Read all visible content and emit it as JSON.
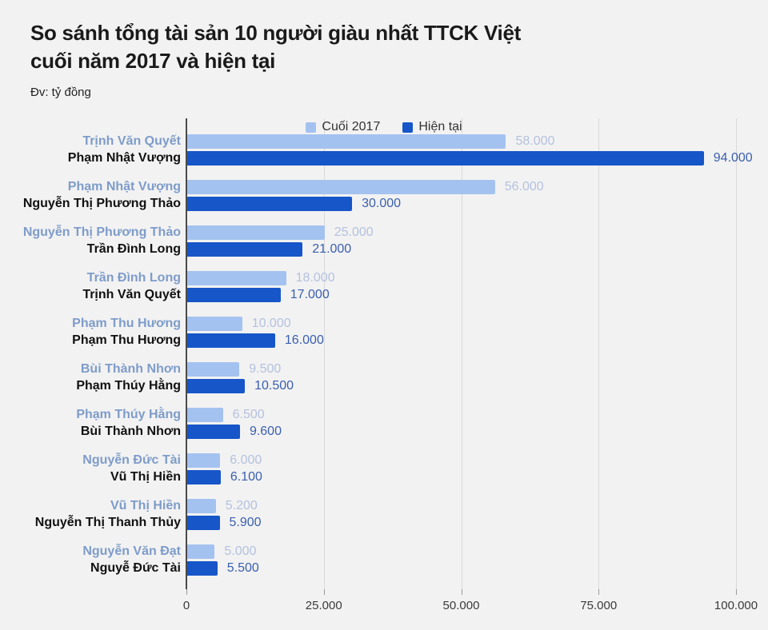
{
  "page": {
    "background": "#f2f2f2"
  },
  "header": {
    "title_line1": "So sánh tổng tài sản 10 người giàu nhất TTCK Việt",
    "title_line2": "cuối năm 2017 và hiện tại",
    "unit_note": "Đv: tỷ đồng"
  },
  "chart_data": {
    "type": "bar",
    "orientation": "horizontal",
    "title": "So sánh tổng tài sản 10 người giàu nhất TTCK Việt cuối năm 2017 và hiện tại",
    "unit": "tỷ đồng",
    "grid": true,
    "legend_position": "top-center",
    "xlim": [
      0,
      100000
    ],
    "x_ticks": [
      {
        "label": "0",
        "value": 0
      },
      {
        "label": "25.000",
        "value": 25000
      },
      {
        "label": "50.000",
        "value": 50000
      },
      {
        "label": "75.000",
        "value": 75000
      },
      {
        "label": "100.000",
        "value": 100000
      }
    ],
    "series": [
      {
        "name": "Cuối 2017",
        "color": "#a4c2f0",
        "name_label_color": "#7e9cc9",
        "value_label_color": "#b4c1de"
      },
      {
        "name": "Hiện tại",
        "color": "#1656c8",
        "name_label_color": "#111111",
        "value_label_color": "#3a5fae"
      }
    ],
    "groups": [
      [
        {
          "name": "Trịnh Văn Quyết",
          "value": 58000,
          "value_label": "58.000"
        },
        {
          "name": "Phạm Nhật Vượng",
          "value": 94000,
          "value_label": "94.000"
        }
      ],
      [
        {
          "name": "Phạm Nhật Vượng",
          "value": 56000,
          "value_label": "56.000"
        },
        {
          "name": "Nguyễn Thị Phương Thảo",
          "value": 30000,
          "value_label": "30.000"
        }
      ],
      [
        {
          "name": "Nguyễn Thị Phương Thảo",
          "value": 25000,
          "value_label": "25.000"
        },
        {
          "name": "Trần Đình Long",
          "value": 21000,
          "value_label": "21.000"
        }
      ],
      [
        {
          "name": "Trần Đình Long",
          "value": 18000,
          "value_label": "18.000"
        },
        {
          "name": "Trịnh Văn Quyết",
          "value": 17000,
          "value_label": "17.000"
        }
      ],
      [
        {
          "name": "Phạm Thu Hương",
          "value": 10000,
          "value_label": "10.000"
        },
        {
          "name": "Phạm Thu Hương",
          "value": 16000,
          "value_label": "16.000"
        }
      ],
      [
        {
          "name": "Bùi Thành Nhơn",
          "value": 9500,
          "value_label": "9.500"
        },
        {
          "name": "Phạm Thúy Hằng",
          "value": 10500,
          "value_label": "10.500"
        }
      ],
      [
        {
          "name": "Phạm Thúy Hằng",
          "value": 6500,
          "value_label": "6.500"
        },
        {
          "name": "Bùi Thành Nhơn",
          "value": 9600,
          "value_label": "9.600"
        }
      ],
      [
        {
          "name": "Nguyễn Đức Tài",
          "value": 6000,
          "value_label": "6.000"
        },
        {
          "name": "Vũ Thị Hiền",
          "value": 6100,
          "value_label": "6.100"
        }
      ],
      [
        {
          "name": "Vũ Thị Hiền",
          "value": 5200,
          "value_label": "5.200"
        },
        {
          "name": "Nguyễn Thị Thanh Thủy",
          "value": 5900,
          "value_label": "5.900"
        }
      ],
      [
        {
          "name": "Nguyễn Văn Đạt",
          "value": 5000,
          "value_label": "5.000"
        },
        {
          "name": "Nguyễ Đức Tài",
          "value": 5500,
          "value_label": "5.500"
        }
      ]
    ]
  }
}
